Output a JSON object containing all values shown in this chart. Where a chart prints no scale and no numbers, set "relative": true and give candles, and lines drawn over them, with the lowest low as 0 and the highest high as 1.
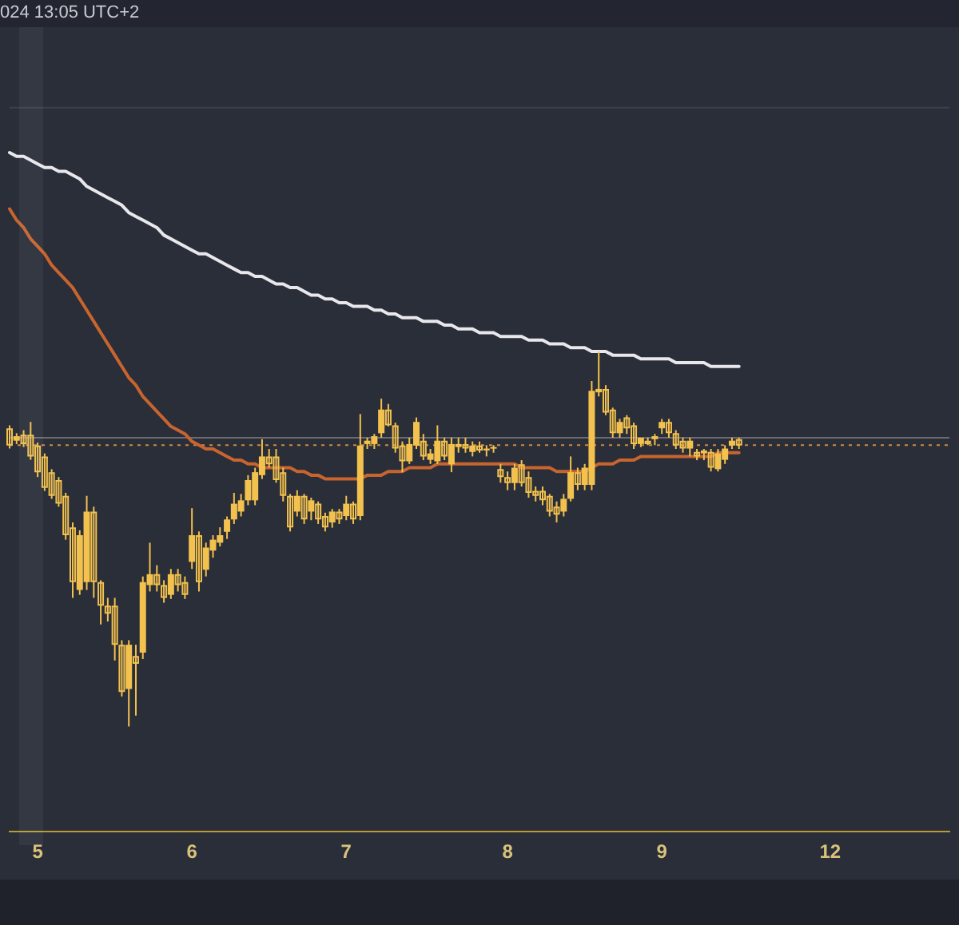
{
  "chart_data": {
    "type": "candlestick",
    "relative": true,
    "color": "#f2c14e",
    "grid": false,
    "legend": false,
    "tick_labels": "x",
    "annotations": [
      "024 13:05 UTC+2"
    ],
    "categories": [
      null,
      null,
      null,
      null,
      "5",
      null,
      null,
      null,
      null,
      null,
      null,
      null,
      null,
      null,
      null,
      null,
      null,
      null,
      null,
      null,
      null,
      null,
      null,
      null,
      null,
      null,
      "6",
      null,
      null,
      null,
      null,
      null,
      null,
      null,
      null,
      null,
      null,
      null,
      null,
      null,
      null,
      null,
      null,
      null,
      null,
      null,
      null,
      null,
      "7",
      null,
      null,
      null,
      null,
      null,
      null,
      null,
      null,
      null,
      null,
      null,
      null,
      null,
      null,
      null,
      null,
      null,
      null,
      null,
      null,
      null,
      null,
      "8",
      null,
      null,
      null,
      null,
      null,
      null,
      null,
      null,
      null,
      null,
      null,
      null,
      null,
      null,
      null,
      null,
      null,
      null,
      null,
      null,
      null,
      "9",
      null,
      null,
      null,
      null,
      null,
      null,
      null,
      null,
      null,
      null,
      null,
      null,
      null,
      null,
      null,
      null,
      null,
      null,
      null,
      null,
      null,
      null,
      null,
      "12",
      null,
      null,
      null,
      null,
      null,
      null,
      null,
      null,
      null,
      null,
      null,
      null,
      null,
      null,
      null,
      null,
      null
    ],
    "ohlc": [
      [
        0.795,
        0.803,
        0.741,
        0.749
      ],
      [
        0.762,
        0.782,
        0.753,
        0.774
      ],
      [
        0.778,
        0.79,
        0.745,
        0.753
      ],
      [
        0.778,
        0.812,
        0.711,
        0.72
      ],
      [
        0.749,
        0.757,
        0.665,
        0.678
      ],
      [
        0.72,
        0.728,
        0.628,
        0.636
      ],
      [
        0.678,
        0.686,
        0.607,
        0.615
      ],
      [
        0.657,
        0.665,
        0.586,
        0.594
      ],
      [
        0.615,
        0.623,
        0.498,
        0.51
      ],
      [
        0.531,
        0.544,
        0.343,
        0.385
      ],
      [
        0.364,
        0.523,
        0.351,
        0.51
      ],
      [
        0.385,
        0.615,
        0.364,
        0.573
      ],
      [
        0.573,
        0.586,
        0.343,
        0.385
      ],
      [
        0.385,
        0.39,
        0.272,
        0.322
      ],
      [
        0.322,
        0.343,
        0.28,
        0.301
      ],
      [
        0.322,
        0.343,
        0.176,
        0.218
      ],
      [
        0.218,
        0.23,
        0.08,
        0.092
      ],
      [
        0.1,
        0.23,
        0,
        0.218
      ],
      [
        0.188,
        0.218,
        0.029,
        0.167
      ],
      [
        0.197,
        0.4,
        0.18,
        0.385
      ],
      [
        0.377,
        0.49,
        0.36,
        0.406
      ],
      [
        0.406,
        0.43,
        0.36,
        0.377
      ],
      [
        0.377,
        0.39,
        0.33,
        0.343
      ],
      [
        0.351,
        0.42,
        0.34,
        0.406
      ],
      [
        0.406,
        0.42,
        0.36,
        0.377
      ],
      [
        0.385,
        0.4,
        0.34,
        0.351
      ],
      [
        0.439,
        0.582,
        0.42,
        0.51
      ],
      [
        0.51,
        0.52,
        0.36,
        0.385
      ],
      [
        0.418,
        0.49,
        0.4,
        0.477
      ],
      [
        0.469,
        0.51,
        0.45,
        0.498
      ],
      [
        0.49,
        0.531,
        0.48,
        0.51
      ],
      [
        0.519,
        0.56,
        0.5,
        0.552
      ],
      [
        0.552,
        0.623,
        0.54,
        0.594
      ],
      [
        0.573,
        0.62,
        0.56,
        0.603
      ],
      [
        0.603,
        0.67,
        0.59,
        0.657
      ],
      [
        0.603,
        0.69,
        0.59,
        0.678
      ],
      [
        0.67,
        0.766,
        0.66,
        0.72
      ],
      [
        0.72,
        0.74,
        0.69,
        0.699
      ],
      [
        0.72,
        0.74,
        0.65,
        0.657
      ],
      [
        0.678,
        0.69,
        0.6,
        0.615
      ],
      [
        0.615,
        0.62,
        0.52,
        0.531
      ],
      [
        0.573,
        0.63,
        0.56,
        0.615
      ],
      [
        0.615,
        0.62,
        0.54,
        0.552
      ],
      [
        0.573,
        0.61,
        0.55,
        0.603
      ],
      [
        0.594,
        0.6,
        0.54,
        0.552
      ],
      [
        0.561,
        0.57,
        0.52,
        0.531
      ],
      [
        0.544,
        0.58,
        0.53,
        0.573
      ],
      [
        0.573,
        0.58,
        0.54,
        0.552
      ],
      [
        0.561,
        0.615,
        0.55,
        0.594
      ],
      [
        0.594,
        0.6,
        0.54,
        0.552
      ],
      [
        0.561,
        0.833,
        0.55,
        0.749
      ],
      [
        0.753,
        0.77,
        0.74,
        0.762
      ],
      [
        0.753,
        0.78,
        0.74,
        0.774
      ],
      [
        0.782,
        0.874,
        0.77,
        0.845
      ],
      [
        0.845,
        0.86,
        0.8,
        0.803
      ],
      [
        0.803,
        0.81,
        0.73,
        0.741
      ],
      [
        0.749,
        0.76,
        0.678,
        0.707
      ],
      [
        0.707,
        0.77,
        0.7,
        0.753
      ],
      [
        0.749,
        0.824,
        0.74,
        0.812
      ],
      [
        0.762,
        0.78,
        0.71,
        0.72
      ],
      [
        0.711,
        0.74,
        0.7,
        0.728
      ],
      [
        0.707,
        0.803,
        0.7,
        0.762
      ],
      [
        0.762,
        0.77,
        0.71,
        0.72
      ],
      [
        0.699,
        0.77,
        0.678,
        0.753
      ],
      [
        0.745,
        0.77,
        0.73,
        0.753
      ],
      [
        0.753,
        0.77,
        0.73,
        0.741
      ],
      [
        0.732,
        0.76,
        0.72,
        0.749
      ],
      [
        0.749,
        0.76,
        0.73,
        0.736
      ],
      [
        0.736,
        0.75,
        0.72,
        0.741
      ],
      [
        0.741,
        0.75,
        0.73,
        0.745
      ],
      [
        0.686,
        0.7,
        0.65,
        0.665
      ],
      [
        0.665,
        0.68,
        0.63,
        0.649
      ],
      [
        0.649,
        0.7,
        0.63,
        0.69
      ],
      [
        0.699,
        0.71,
        0.64,
        0.649
      ],
      [
        0.665,
        0.68,
        0.61,
        0.623
      ],
      [
        0.628,
        0.64,
        0.6,
        0.615
      ],
      [
        0.628,
        0.64,
        0.59,
        0.603
      ],
      [
        0.615,
        0.62,
        0.56,
        0.573
      ],
      [
        0.586,
        0.6,
        0.544,
        0.565
      ],
      [
        0.573,
        0.62,
        0.56,
        0.607
      ],
      [
        0.607,
        0.72,
        0.6,
        0.678
      ],
      [
        0.678,
        0.69,
        0.63,
        0.644
      ],
      [
        0.644,
        0.7,
        0.63,
        0.69
      ],
      [
        0.644,
        0.921,
        0.63,
        0.895
      ],
      [
        0.891,
        1,
        0.88,
        0.9
      ],
      [
        0.9,
        0.91,
        0.83,
        0.837
      ],
      [
        0.845,
        0.85,
        0.77,
        0.782
      ],
      [
        0.782,
        0.82,
        0.77,
        0.812
      ],
      [
        0.824,
        0.83,
        0.78,
        0.795
      ],
      [
        0.803,
        0.81,
        0.74,
        0.753
      ],
      [
        0.753,
        0.77,
        0.745,
        0.77
      ],
      [
        0.762,
        0.77,
        0.75,
        0.753
      ],
      [
        0.766,
        0.78,
        0.75,
        0.774
      ],
      [
        0.795,
        0.82,
        0.78,
        0.812
      ],
      [
        0.812,
        0.82,
        0.77,
        0.782
      ],
      [
        0.782,
        0.79,
        0.74,
        0.749
      ],
      [
        0.762,
        0.77,
        0.73,
        0.741
      ],
      [
        0.741,
        0.77,
        0.72,
        0.762
      ],
      [
        0.732,
        0.74,
        0.71,
        0.72
      ],
      [
        0.728,
        0.74,
        0.71,
        0.736
      ],
      [
        0.732,
        0.74,
        0.68,
        0.69
      ],
      [
        0.686,
        0.74,
        0.68,
        0.728
      ],
      [
        0.711,
        0.75,
        0.7,
        0.741
      ],
      [
        0.749,
        0.77,
        0.74,
        0.762
      ],
      [
        0.766,
        0.77,
        0.74,
        0.749
      ],
      null,
      null,
      null,
      null,
      null,
      null,
      null,
      null,
      null,
      null,
      null,
      null,
      null,
      null,
      null,
      null,
      null,
      null,
      null,
      null,
      null,
      null,
      null,
      null,
      null,
      null,
      null,
      null,
      null,
      null
    ],
    "series": [
      {
        "type": "line",
        "color": "#e8e8ec",
        "values": [
          1.53,
          1.52,
          1.52,
          1.51,
          1.5,
          1.49,
          1.49,
          1.48,
          1.48,
          1.47,
          1.46,
          1.44,
          1.43,
          1.42,
          1.41,
          1.4,
          1.39,
          1.37,
          1.36,
          1.35,
          1.34,
          1.33,
          1.31,
          1.3,
          1.29,
          1.28,
          1.27,
          1.26,
          1.26,
          1.25,
          1.24,
          1.23,
          1.22,
          1.21,
          1.21,
          1.2,
          1.2,
          1.19,
          1.18,
          1.18,
          1.17,
          1.17,
          1.16,
          1.15,
          1.15,
          1.14,
          1.14,
          1.13,
          1.13,
          1.12,
          1.12,
          1.12,
          1.11,
          1.11,
          1.1,
          1.1,
          1.09,
          1.09,
          1.09,
          1.08,
          1.08,
          1.08,
          1.07,
          1.07,
          1.06,
          1.06,
          1.06,
          1.05,
          1.05,
          1.05,
          1.04,
          1.04,
          1.04,
          1.04,
          1.03,
          1.03,
          1.03,
          1.02,
          1.02,
          1.02,
          1.01,
          1.01,
          1.01,
          1.0,
          1.0,
          1.0,
          0.99,
          0.99,
          0.99,
          0.99,
          0.98,
          0.98,
          0.98,
          0.98,
          0.98,
          0.97,
          0.97,
          0.97,
          0.97,
          0.97,
          0.96,
          0.96,
          0.96,
          0.96,
          0.96,
          null,
          null,
          null,
          null,
          null,
          null,
          null,
          null,
          null,
          null,
          null,
          null,
          null,
          null,
          null,
          null,
          null,
          null,
          null,
          null,
          null,
          null,
          null,
          null,
          null,
          null,
          null,
          null,
          null,
          null
        ]
      },
      {
        "type": "line",
        "color": "#c8642e",
        "values": [
          1.38,
          1.35,
          1.33,
          1.3,
          1.28,
          1.26,
          1.23,
          1.21,
          1.19,
          1.17,
          1.14,
          1.11,
          1.08,
          1.05,
          1.02,
          0.99,
          0.96,
          0.93,
          0.91,
          0.88,
          0.86,
          0.84,
          0.82,
          0.8,
          0.79,
          0.78,
          0.76,
          0.75,
          0.74,
          0.74,
          0.73,
          0.72,
          0.71,
          0.71,
          0.7,
          0.7,
          0.69,
          0.69,
          0.69,
          0.69,
          0.69,
          0.68,
          0.68,
          0.67,
          0.67,
          0.66,
          0.66,
          0.66,
          0.66,
          0.66,
          0.66,
          0.67,
          0.67,
          0.67,
          0.68,
          0.68,
          0.68,
          0.69,
          0.69,
          0.69,
          0.69,
          0.7,
          0.7,
          0.7,
          0.7,
          0.7,
          0.7,
          0.7,
          0.7,
          0.7,
          0.7,
          0.7,
          0.7,
          0.69,
          0.69,
          0.69,
          0.69,
          0.69,
          0.68,
          0.68,
          0.68,
          0.68,
          0.68,
          0.69,
          0.7,
          0.7,
          0.7,
          0.71,
          0.71,
          0.71,
          0.72,
          0.72,
          0.72,
          0.72,
          0.72,
          0.72,
          0.72,
          0.72,
          0.72,
          0.72,
          0.72,
          0.73,
          0.73,
          0.73,
          0.73,
          null,
          null,
          null,
          null,
          null,
          null,
          null,
          null,
          null,
          null,
          null,
          null,
          null,
          null,
          null,
          null,
          null,
          null,
          null,
          null,
          null,
          null,
          null,
          null,
          null,
          null,
          null,
          null,
          null,
          null
        ]
      }
    ],
    "ref_lines": [
      {
        "axis": "y",
        "value": 1.65,
        "color": "#3c404c"
      },
      {
        "axis": "y",
        "value": 0.77,
        "color": "#6e6a72"
      },
      {
        "axis": "y",
        "value": 0.75,
        "color": "#d08a3c",
        "line_style": "dotted"
      }
    ]
  }
}
